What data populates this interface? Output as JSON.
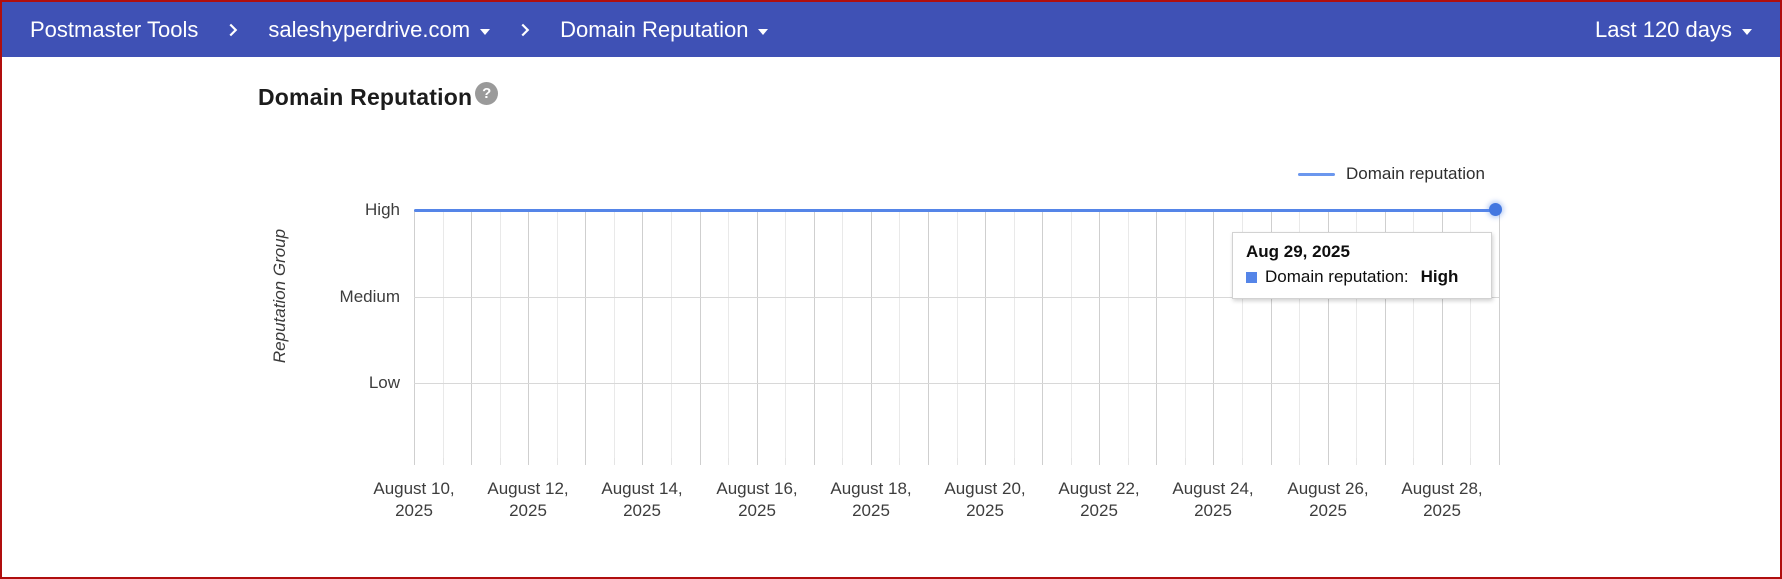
{
  "header": {
    "app_title": "Postmaster Tools",
    "domain": "saleshyperdrive.com",
    "report": "Domain Reputation",
    "date_range": "Last 120 days"
  },
  "page": {
    "title": "Domain Reputation",
    "help_glyph": "?"
  },
  "tooltip": {
    "date": "Aug 29, 2025",
    "series_label": "Domain reputation:",
    "value": "High"
  },
  "colors": {
    "header_bg": "#3f51b5",
    "series_blue": "#5585e8",
    "frame_border_red": "#b00e0e"
  },
  "chart_data": {
    "type": "line",
    "title": "Domain Reputation",
    "xlabel": "",
    "ylabel": "Reputation Group",
    "y_categories": [
      "High",
      "Medium",
      "Low"
    ],
    "grid": true,
    "legend_position": "top-right",
    "x_tick_interval_days": 2,
    "x_tick_labels": [
      "August 10, 2025",
      "August 12, 2025",
      "August 14, 2025",
      "August 16, 2025",
      "August 18, 2025",
      "August 20, 2025",
      "August 22, 2025",
      "August 24, 2025",
      "August 26, 2025",
      "August 28, 2025"
    ],
    "series": [
      {
        "name": "Domain reputation",
        "color": "#5585e8",
        "x": [
          "Aug 10, 2025",
          "Aug 11, 2025",
          "Aug 12, 2025",
          "Aug 13, 2025",
          "Aug 14, 2025",
          "Aug 15, 2025",
          "Aug 16, 2025",
          "Aug 17, 2025",
          "Aug 18, 2025",
          "Aug 19, 2025",
          "Aug 20, 2025",
          "Aug 21, 2025",
          "Aug 22, 2025",
          "Aug 23, 2025",
          "Aug 24, 2025",
          "Aug 25, 2025",
          "Aug 26, 2025",
          "Aug 27, 2025",
          "Aug 28, 2025",
          "Aug 29, 2025"
        ],
        "values": [
          "High",
          "High",
          "High",
          "High",
          "High",
          "High",
          "High",
          "High",
          "High",
          "High",
          "High",
          "High",
          "High",
          "High",
          "High",
          "High",
          "High",
          "High",
          "High",
          "High"
        ]
      }
    ],
    "last_point": {
      "x": "Aug 29, 2025",
      "value": "High"
    }
  }
}
